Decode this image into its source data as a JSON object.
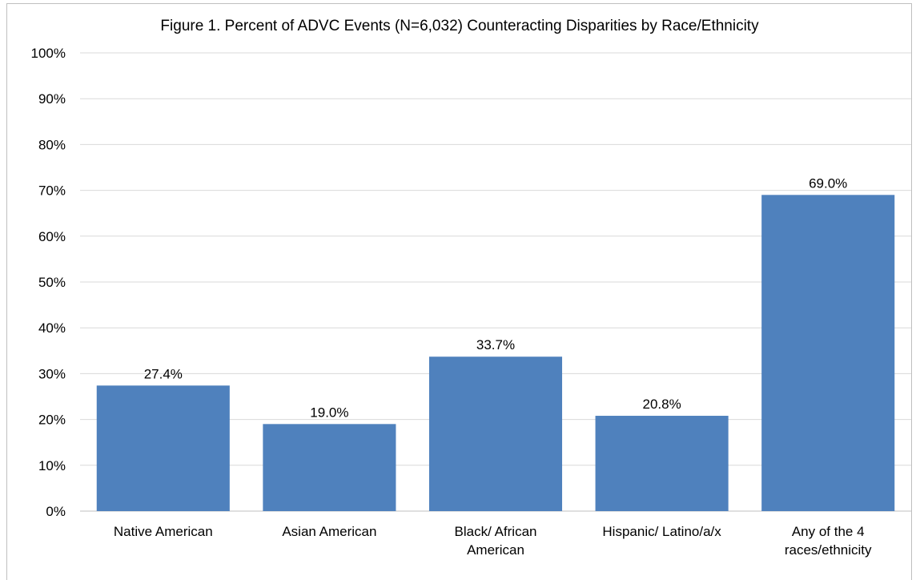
{
  "chart_data": {
    "type": "bar",
    "title": "Figure 1. Percent of ADVC Events (N=6,032) Counteracting Disparities by Race/Ethnicity",
    "categories": [
      [
        "Native American"
      ],
      [
        "Asian American"
      ],
      [
        "Black/ African",
        "American"
      ],
      [
        "Hispanic/ Latino/a/x"
      ],
      [
        "Any of the 4",
        "races/ethnicity"
      ]
    ],
    "values": [
      27.4,
      19.0,
      33.7,
      20.8,
      69.0
    ],
    "data_labels": [
      "27.4%",
      "19.0%",
      "33.7%",
      "20.8%",
      "69.0%"
    ],
    "ylim": [
      0,
      100
    ],
    "yticks": [
      "0%",
      "10%",
      "20%",
      "30%",
      "40%",
      "50%",
      "60%",
      "70%",
      "80%",
      "90%",
      "100%"
    ],
    "xlabel": "",
    "ylabel": "",
    "grid": true,
    "legend": "none",
    "bar_color": "#4f81bd",
    "grid_color": "#d9d9d9"
  }
}
